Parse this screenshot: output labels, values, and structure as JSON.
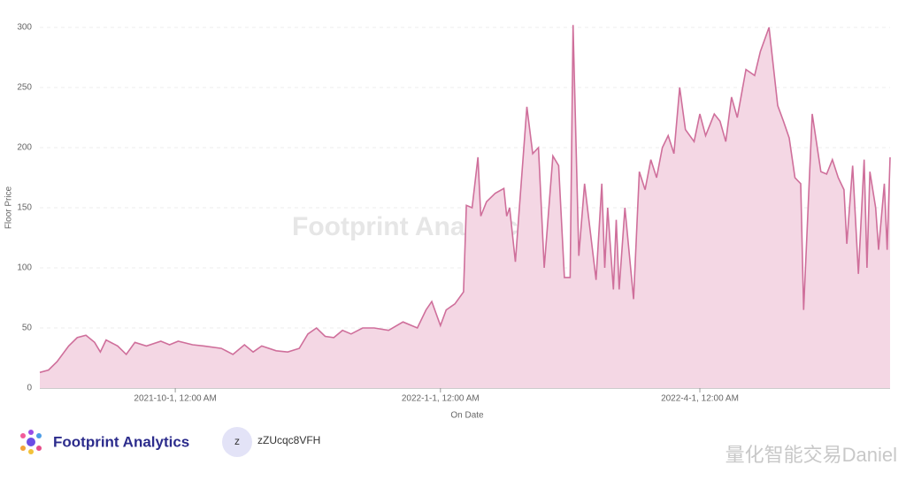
{
  "chart_data": {
    "type": "area",
    "y_label": "Floor Price",
    "x_label": "On Date",
    "color": "#cf6f9b",
    "fill": "#f4d7e4",
    "grid": true,
    "xlim": [
      "2021-08-15",
      "2022-06-06"
    ],
    "xticks": [
      {
        "value": "2021-10-01",
        "label": "2021-10-1, 12:00 AM"
      },
      {
        "value": "2022-01-01",
        "label": "2022-1-1, 12:00 AM"
      },
      {
        "value": "2022-04-01",
        "label": "2022-4-1, 12:00 AM"
      }
    ],
    "ylim": [
      0,
      300
    ],
    "yticks": [
      0,
      50,
      100,
      150,
      200,
      250,
      300
    ],
    "x": [
      "2021-08-15",
      "2021-08-18",
      "2021-08-21",
      "2021-08-25",
      "2021-08-28",
      "2021-08-31",
      "2021-09-03",
      "2021-09-05",
      "2021-09-07",
      "2021-09-11",
      "2021-09-14",
      "2021-09-17",
      "2021-09-21",
      "2021-09-26",
      "2021-09-29",
      "2021-10-02",
      "2021-10-07",
      "2021-10-11",
      "2021-10-17",
      "2021-10-21",
      "2021-10-25",
      "2021-10-28",
      "2021-10-31",
      "2021-11-05",
      "2021-11-09",
      "2021-11-13",
      "2021-11-16",
      "2021-11-19",
      "2021-11-22",
      "2021-11-25",
      "2021-11-28",
      "2021-12-01",
      "2021-12-05",
      "2021-12-09",
      "2021-12-14",
      "2021-12-19",
      "2021-12-24",
      "2021-12-27",
      "2021-12-29",
      "2022-01-01",
      "2022-01-03",
      "2022-01-06",
      "2022-01-09",
      "2022-01-10",
      "2022-01-12",
      "2022-01-14",
      "2022-01-15",
      "2022-01-17",
      "2022-01-20",
      "2022-01-23",
      "2022-01-24",
      "2022-01-25",
      "2022-01-27",
      "2022-01-31",
      "2022-02-02",
      "2022-02-04",
      "2022-02-06",
      "2022-02-09",
      "2022-02-11",
      "2022-02-13",
      "2022-02-15",
      "2022-02-16",
      "2022-02-18",
      "2022-02-20",
      "2022-02-22",
      "2022-02-24",
      "2022-02-26",
      "2022-02-27",
      "2022-02-28",
      "2022-03-02",
      "2022-03-03",
      "2022-03-04",
      "2022-03-06",
      "2022-03-09",
      "2022-03-11",
      "2022-03-13",
      "2022-03-15",
      "2022-03-17",
      "2022-03-19",
      "2022-03-21",
      "2022-03-23",
      "2022-03-25",
      "2022-03-27",
      "2022-03-30",
      "2022-04-01",
      "2022-04-03",
      "2022-04-06",
      "2022-04-08",
      "2022-04-10",
      "2022-04-12",
      "2022-04-14",
      "2022-04-17",
      "2022-04-20",
      "2022-04-22",
      "2022-04-25",
      "2022-04-28",
      "2022-04-30",
      "2022-05-02",
      "2022-05-04",
      "2022-05-06",
      "2022-05-07",
      "2022-05-10",
      "2022-05-13",
      "2022-05-15",
      "2022-05-17",
      "2022-05-19",
      "2022-05-21",
      "2022-05-22",
      "2022-05-24",
      "2022-05-26",
      "2022-05-28",
      "2022-05-29",
      "2022-05-30",
      "2022-06-01",
      "2022-06-02",
      "2022-06-04",
      "2022-06-05",
      "2022-06-06"
    ],
    "values": [
      13,
      15,
      22,
      35,
      42,
      44,
      38,
      30,
      40,
      35,
      28,
      38,
      35,
      39,
      36,
      39,
      36,
      35,
      33,
      28,
      36,
      30,
      35,
      31,
      30,
      33,
      45,
      50,
      43,
      42,
      48,
      45,
      50,
      50,
      48,
      55,
      50,
      65,
      72,
      52,
      65,
      70,
      80,
      152,
      150,
      192,
      143,
      155,
      162,
      166,
      143,
      150,
      105,
      234,
      195,
      200,
      100,
      193,
      185,
      92,
      92,
      302,
      110,
      170,
      130,
      90,
      170,
      100,
      150,
      82,
      140,
      82,
      150,
      74,
      180,
      165,
      190,
      175,
      200,
      210,
      195,
      250,
      215,
      205,
      228,
      210,
      228,
      222,
      205,
      242,
      225,
      265,
      260,
      280,
      300,
      235,
      222,
      208,
      175,
      170,
      65,
      228,
      180,
      178,
      190,
      175,
      165,
      120,
      185,
      95,
      190,
      100,
      180,
      150,
      115,
      170,
      115,
      192
    ]
  },
  "watermark": "Footprint Analytics",
  "brand": "Footprint Analytics",
  "avatar": "z",
  "user": "zZUcqc8VFH",
  "credit": "量化智能交易Daniel"
}
